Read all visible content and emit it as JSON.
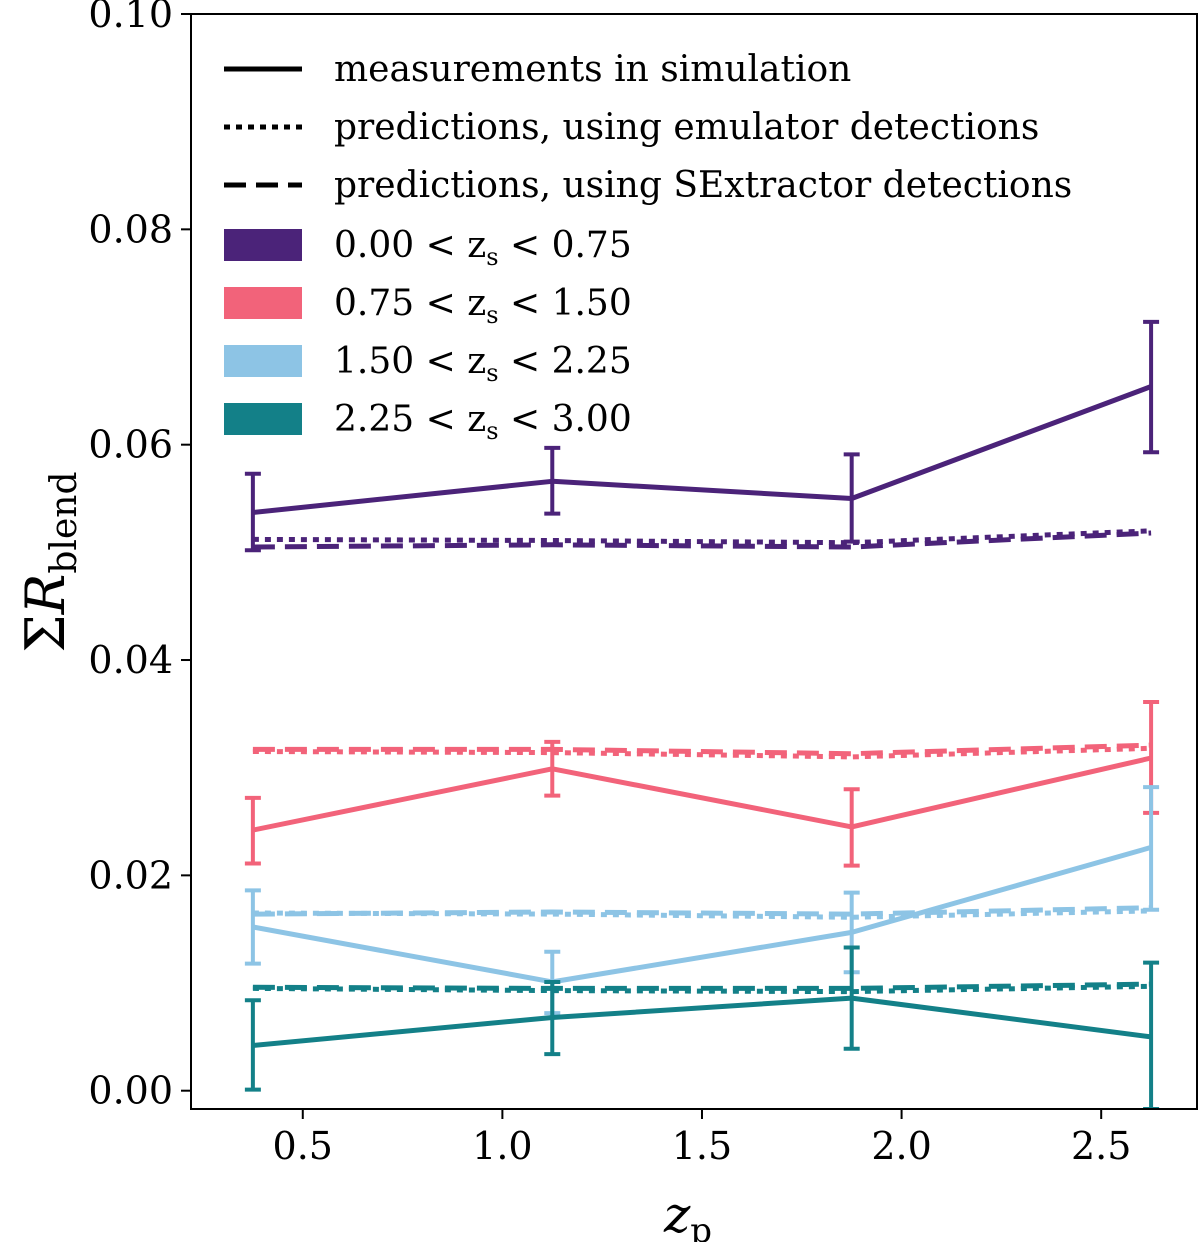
{
  "chart_data": {
    "type": "line",
    "title": "",
    "xlabel": "z",
    "xlabel_sub": "p",
    "ylabel_prefix": "Σ",
    "ylabel": "R",
    "ylabel_sub": "blend",
    "xlim": [
      0.22,
      2.74
    ],
    "ylim": [
      -0.0017,
      0.1
    ],
    "xticks": [
      0.5,
      1.0,
      1.5,
      2.0,
      2.5
    ],
    "xtick_labels": [
      "0.5",
      "1.0",
      "1.5",
      "2.0",
      "2.5"
    ],
    "yticks": [
      0.0,
      0.02,
      0.04,
      0.06,
      0.08,
      0.1
    ],
    "ytick_labels": [
      "0.00",
      "0.02",
      "0.04",
      "0.06",
      "0.08",
      "0.10"
    ],
    "grid": false,
    "legend_position": "top-left",
    "legend": {
      "styles": [
        {
          "label": "measurements in simulation",
          "dash": "solid"
        },
        {
          "label": "predictions, using emulator detections",
          "dash": "dotted"
        },
        {
          "label": "predictions, using SExtractor detections",
          "dash": "dashed"
        }
      ],
      "bins": [
        {
          "label": "0.00 < z",
          "sub": "s",
          "label_end": " < 0.75",
          "color": "#4b2379"
        },
        {
          "label": "0.75 < z",
          "sub": "s",
          "label_end": " < 1.50",
          "color": "#f2637a"
        },
        {
          "label": "1.50 < z",
          "sub": "s",
          "label_end": " < 2.25",
          "color": "#8dc4e5"
        },
        {
          "label": "2.25 < z",
          "sub": "s",
          "label_end": " < 3.00",
          "color": "#138088"
        }
      ]
    },
    "x": [
      0.375,
      1.125,
      1.875,
      2.625
    ],
    "series": [
      {
        "name": "0.00 < zs < 0.75",
        "color": "#4b2379",
        "measured": [
          0.0537,
          0.0566,
          0.055,
          0.0654
        ],
        "error_low": [
          0.0502,
          0.0536,
          0.051,
          0.0593
        ],
        "error_high": [
          0.0573,
          0.0597,
          0.0591,
          0.0714
        ],
        "emulator": [
          0.0512,
          0.0511,
          0.0509,
          0.052
        ],
        "sextractor": [
          0.0505,
          0.0507,
          0.0505,
          0.0518
        ]
      },
      {
        "name": "0.75 < zs < 1.50",
        "color": "#f2637a",
        "measured": [
          0.0242,
          0.0299,
          0.0245,
          0.0309
        ],
        "error_low": [
          0.0211,
          0.0274,
          0.0209,
          0.0258
        ],
        "error_high": [
          0.0272,
          0.0324,
          0.028,
          0.0361
        ],
        "emulator": [
          0.0315,
          0.0314,
          0.031,
          0.0318
        ],
        "sextractor": [
          0.0317,
          0.0317,
          0.0313,
          0.0321
        ]
      },
      {
        "name": "1.50 < zs < 2.25",
        "color": "#8dc4e5",
        "measured": [
          0.0152,
          0.0101,
          0.0147,
          0.0226
        ],
        "error_low": [
          0.0118,
          0.0072,
          0.011,
          0.0168
        ],
        "error_high": [
          0.0186,
          0.0129,
          0.0184,
          0.0282
        ],
        "emulator": [
          0.0165,
          0.0164,
          0.0161,
          0.0167
        ],
        "sextractor": [
          0.0164,
          0.0166,
          0.0164,
          0.017
        ]
      },
      {
        "name": "2.25 < zs < 3.00",
        "color": "#138088",
        "measured": [
          0.0042,
          0.0068,
          0.0086,
          0.005
        ],
        "error_low": [
          0.0001,
          0.0034,
          0.0039,
          -0.0017
        ],
        "error_high": [
          0.0084,
          0.0101,
          0.0133,
          0.0119
        ],
        "emulator": [
          0.0095,
          0.0093,
          0.0092,
          0.0097
        ],
        "sextractor": [
          0.0096,
          0.0095,
          0.0095,
          0.0099
        ]
      }
    ]
  }
}
